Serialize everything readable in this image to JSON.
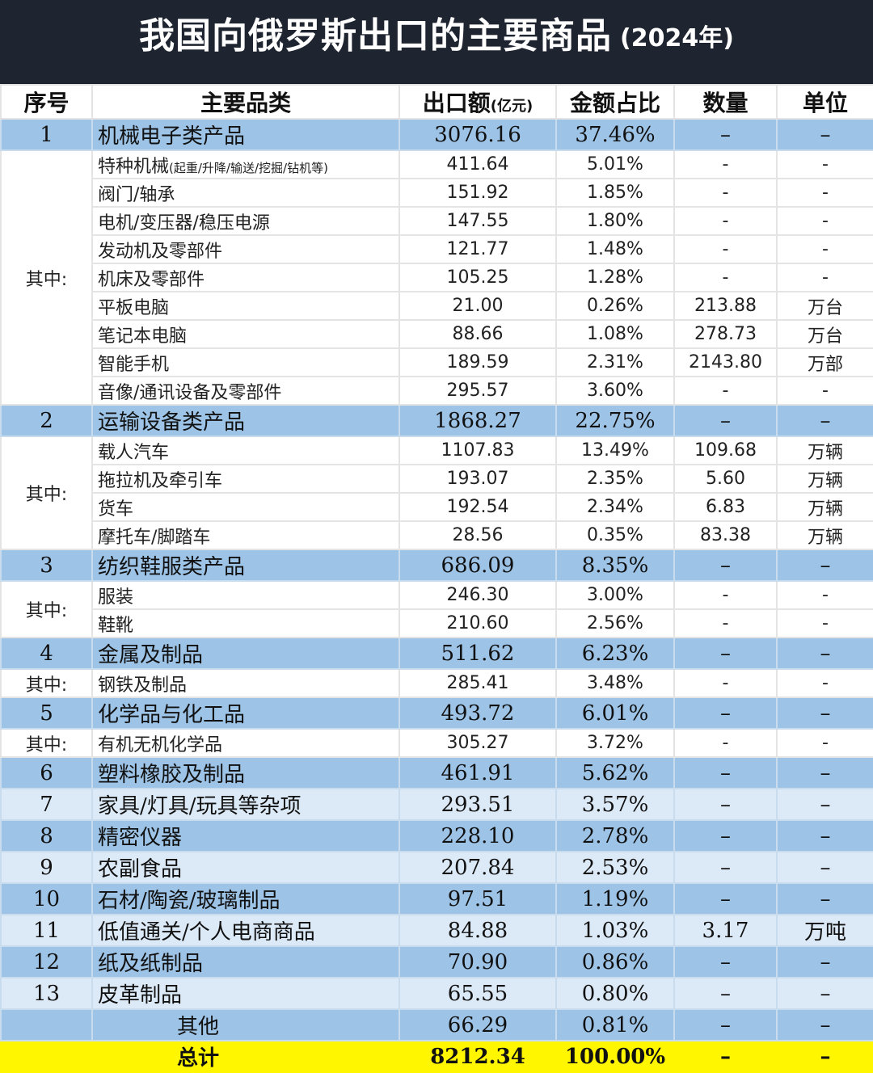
{
  "title": {
    "main": "我国向俄罗斯出口的主要商品",
    "year": "(2024年)"
  },
  "headers": {
    "seq": "序号",
    "category": "主要品类",
    "amount": "出口额",
    "amount_unit": "(亿元)",
    "share": "金额占比",
    "quantity": "数量",
    "unit": "单位"
  },
  "colors": {
    "header_bg": "#1f2530",
    "main_row": "#9dc3e6",
    "light_row": "#dce9f6",
    "total_row": "#fff600"
  },
  "subtotal_label": "其中:",
  "groups": [
    {
      "seq": "1",
      "name": "机械电子类产品",
      "amount": "3076.16",
      "share": "37.46%",
      "qty": "–",
      "unit": "–",
      "subs": [
        {
          "name": "特种机械",
          "note": "(起重/升降/输送/挖掘/钻机等)",
          "amount": "411.64",
          "share": "5.01%",
          "qty": "-",
          "unit": "-"
        },
        {
          "name": "阀门/轴承",
          "amount": "151.92",
          "share": "1.85%",
          "qty": "-",
          "unit": "-"
        },
        {
          "name": "电机/变压器/稳压电源",
          "amount": "147.55",
          "share": "1.80%",
          "qty": "-",
          "unit": "-"
        },
        {
          "name": "发动机及零部件",
          "amount": "121.77",
          "share": "1.48%",
          "qty": "-",
          "unit": "-"
        },
        {
          "name": "机床及零部件",
          "amount": "105.25",
          "share": "1.28%",
          "qty": "-",
          "unit": "-"
        },
        {
          "name": "平板电脑",
          "amount": "21.00",
          "share": "0.26%",
          "qty": "213.88",
          "unit": "万台"
        },
        {
          "name": "笔记本电脑",
          "amount": "88.66",
          "share": "1.08%",
          "qty": "278.73",
          "unit": "万台"
        },
        {
          "name": "智能手机",
          "amount": "189.59",
          "share": "2.31%",
          "qty": "2143.80",
          "unit": "万部"
        },
        {
          "name": "音像/通讯设备及零部件",
          "amount": "295.57",
          "share": "3.60%",
          "qty": "-",
          "unit": "-"
        }
      ]
    },
    {
      "seq": "2",
      "name": "运输设备类产品",
      "amount": "1868.27",
      "share": "22.75%",
      "qty": "–",
      "unit": "–",
      "subs": [
        {
          "name": "载人汽车",
          "amount": "1107.83",
          "share": "13.49%",
          "qty": "109.68",
          "unit": "万辆"
        },
        {
          "name": "拖拉机及牵引车",
          "amount": "193.07",
          "share": "2.35%",
          "qty": "5.60",
          "unit": "万辆"
        },
        {
          "name": "货车",
          "amount": "192.54",
          "share": "2.34%",
          "qty": "6.83",
          "unit": "万辆"
        },
        {
          "name": "摩托车/脚踏车",
          "amount": "28.56",
          "share": "0.35%",
          "qty": "83.38",
          "unit": "万辆"
        }
      ]
    },
    {
      "seq": "3",
      "name": "纺织鞋服类产品",
      "amount": "686.09",
      "share": "8.35%",
      "qty": "–",
      "unit": "–",
      "subs": [
        {
          "name": "服装",
          "amount": "246.30",
          "share": "3.00%",
          "qty": "-",
          "unit": "-"
        },
        {
          "name": "鞋靴",
          "amount": "210.60",
          "share": "2.56%",
          "qty": "-",
          "unit": "-"
        }
      ]
    },
    {
      "seq": "4",
      "name": "金属及制品",
      "amount": "511.62",
      "share": "6.23%",
      "qty": "–",
      "unit": "–",
      "subs": [
        {
          "name": "钢铁及制品",
          "amount": "285.41",
          "share": "3.48%",
          "qty": "-",
          "unit": "-"
        }
      ]
    },
    {
      "seq": "5",
      "name": "化学品与化工品",
      "amount": "493.72",
      "share": "6.01%",
      "qty": "–",
      "unit": "–",
      "subs": [
        {
          "name": "有机无机化学品",
          "amount": "305.27",
          "share": "3.72%",
          "qty": "-",
          "unit": "-"
        }
      ]
    },
    {
      "seq": "6",
      "name": "塑料橡胶及制品",
      "amount": "461.91",
      "share": "5.62%",
      "qty": "–",
      "unit": "–",
      "subs": []
    },
    {
      "seq": "7",
      "name": "家具/灯具/玩具等杂项",
      "amount": "293.51",
      "share": "3.57%",
      "qty": "–",
      "unit": "–",
      "subs": []
    },
    {
      "seq": "8",
      "name": "精密仪器",
      "amount": "228.10",
      "share": "2.78%",
      "qty": "–",
      "unit": "–",
      "subs": []
    },
    {
      "seq": "9",
      "name": "农副食品",
      "amount": "207.84",
      "share": "2.53%",
      "qty": "–",
      "unit": "–",
      "subs": []
    },
    {
      "seq": "10",
      "name": "石材/陶瓷/玻璃制品",
      "amount": "97.51",
      "share": "1.19%",
      "qty": "–",
      "unit": "–",
      "subs": []
    },
    {
      "seq": "11",
      "name": "低值通关/个人电商商品",
      "amount": "84.88",
      "share": "1.03%",
      "qty": "3.17",
      "unit": "万吨",
      "subs": []
    },
    {
      "seq": "12",
      "name": "纸及纸制品",
      "amount": "70.90",
      "share": "0.86%",
      "qty": "–",
      "unit": "–",
      "subs": []
    },
    {
      "seq": "13",
      "name": "皮革制品",
      "amount": "65.55",
      "share": "0.80%",
      "qty": "–",
      "unit": "–",
      "subs": []
    }
  ],
  "other": {
    "name": "其他",
    "amount": "66.29",
    "share": "0.81%",
    "qty": "–",
    "unit": "–"
  },
  "total": {
    "name": "总计",
    "amount": "8212.34",
    "share": "100.00%",
    "qty": "–",
    "unit": "–"
  }
}
